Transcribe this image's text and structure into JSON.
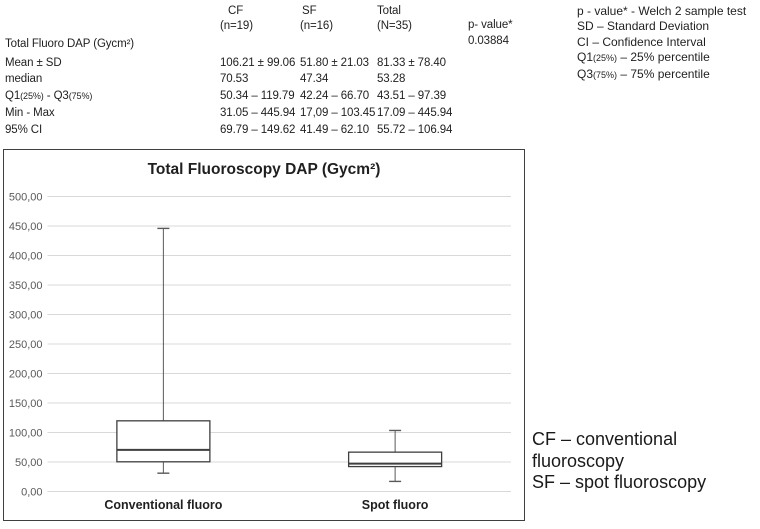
{
  "table": {
    "section_label": "Total Fluoro DAP (Gycm²)",
    "columns": [
      {
        "name": "CF",
        "n": "(n=19)"
      },
      {
        "name": "SF",
        "n": "(n=16)"
      },
      {
        "name": "Total",
        "n": "(N=35)"
      }
    ],
    "p_header": "p- value*",
    "p_value": "0.03884",
    "rows": [
      {
        "label": "Mean ± SD",
        "values": [
          "106.21 ± 99.06",
          "51.80 ± 21.03",
          "81.33 ± 78.40"
        ]
      },
      {
        "label": "median",
        "values": [
          "70.53",
          "47.34",
          "53.28"
        ]
      },
      {
        "label_parts": [
          {
            "t": "Q1"
          },
          {
            "t": "(25%)",
            "small": true
          },
          {
            "t": " - Q3"
          },
          {
            "t": "(75%)",
            "small": true
          }
        ],
        "values": [
          "50.34 – 119.79",
          "42.24 – 66.70",
          "43.51 – 97.39"
        ]
      },
      {
        "label": "Min - Max",
        "values": [
          "31.05 – 445.94",
          "17,09 – 103.45",
          "17.09 – 445.94"
        ]
      },
      {
        "label": "95% CI",
        "values": [
          "69.79 – 149.62",
          "41.49 – 62.10",
          "55.72 – 106.94"
        ]
      }
    ]
  },
  "notes": [
    [
      {
        "t": "p - value* - Welch 2 sample test"
      }
    ],
    [
      {
        "t": "SD – Standard Deviation"
      }
    ],
    [
      {
        "t": "CI – Confidence Interval"
      }
    ],
    [
      {
        "t": "Q1"
      },
      {
        "t": "(25%)",
        "small": true
      },
      {
        "t": " – 25% percentile"
      }
    ],
    [
      {
        "t": "Q3"
      },
      {
        "t": "(75%)",
        "small": true
      },
      {
        "t": " – 75% percentile"
      }
    ]
  ],
  "annotation": {
    "lines": [
      "CF – conventional fluoroscopy",
      "SF – spot fluoroscopy"
    ]
  },
  "chart_data": {
    "type": "boxplot",
    "title": "Total Fluoroscopy DAP (Gycm²)",
    "categories": [
      "Conventional fluoro",
      "Spot fluoro"
    ],
    "series": [
      {
        "name": "Conventional fluoro",
        "min": 31.05,
        "q1": 50.34,
        "median": 70.53,
        "q3": 119.79,
        "max": 445.94
      },
      {
        "name": "Spot fluoro",
        "min": 17.09,
        "q1": 42.24,
        "median": 47.34,
        "q3": 66.7,
        "max": 103.45
      }
    ],
    "ylim": [
      0,
      500
    ],
    "ytick_step": 50,
    "ytick_labels": [
      "500,00",
      "450,00",
      "400,00",
      "350,00",
      "300,00",
      "250,00",
      "200,00",
      "150,00",
      "100,00",
      "50,00",
      "0,00"
    ],
    "grid": true,
    "legend": "none",
    "colors": {
      "grid": "#d9d9d9",
      "box_stroke": "#3f3f3f",
      "whisker": "#595959",
      "tick_text": "#595959",
      "label_text": "#1f1f1f"
    }
  }
}
